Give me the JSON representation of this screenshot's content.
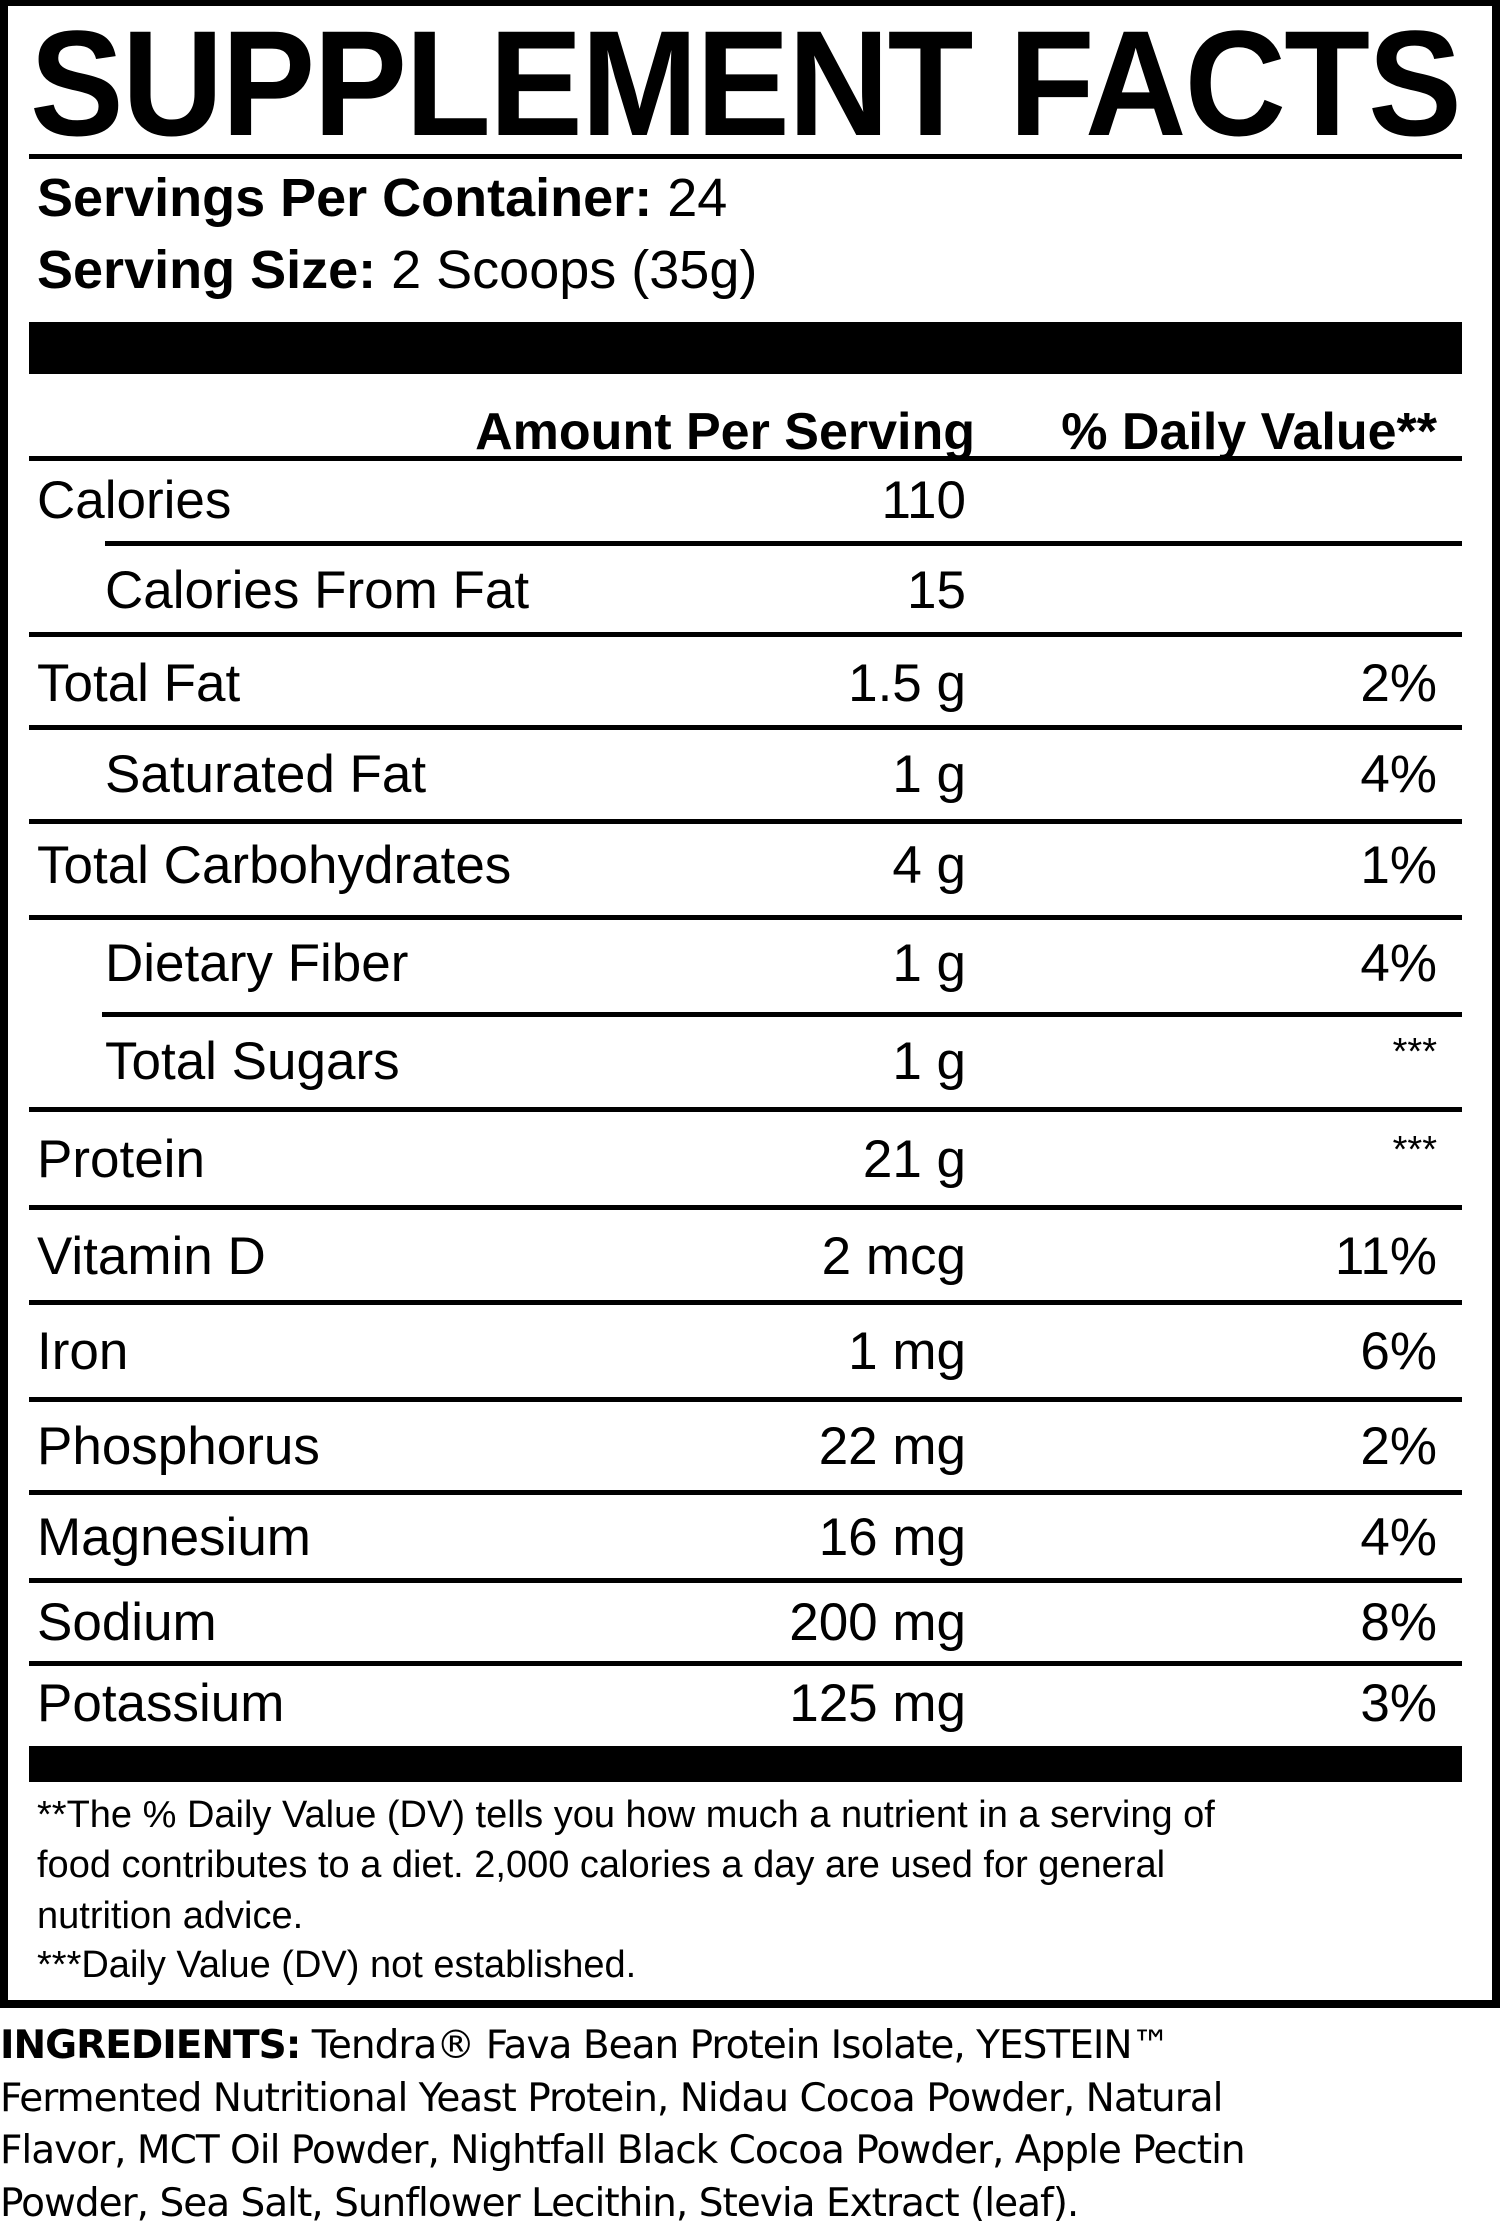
{
  "label": {
    "title": "SUPPLEMENT FACTS",
    "servings_per_container_label": "Servings Per Container:",
    "servings_per_container_value": "24",
    "serving_size_label": "Serving Size:",
    "serving_size_value": "2 Scoops (35g)",
    "col_amount": "Amount Per Serving",
    "col_dv": "% Daily Value**",
    "rows": [
      {
        "name": "Calories",
        "amount": "110",
        "dv": ""
      },
      {
        "name": "Calories From Fat",
        "amount": "15",
        "dv": ""
      },
      {
        "name": "Total Fat",
        "amount": "1.5 g",
        "dv": "2%"
      },
      {
        "name": "Saturated Fat",
        "amount": "1 g",
        "dv": "4%"
      },
      {
        "name": "Total Carbohydrates",
        "amount": "4 g",
        "dv": "1%"
      },
      {
        "name": "Dietary Fiber",
        "amount": "1 g",
        "dv": "4%"
      },
      {
        "name": "Total Sugars",
        "amount": "1 g",
        "dv": "***"
      },
      {
        "name": "Protein",
        "amount": "21 g",
        "dv": "***"
      },
      {
        "name": "Vitamin D",
        "amount": "2 mcg",
        "dv": "11%"
      },
      {
        "name": "Iron",
        "amount": "1 mg",
        "dv": "6%"
      },
      {
        "name": "Phosphorus",
        "amount": "22 mg",
        "dv": "2%"
      },
      {
        "name": "Magnesium",
        "amount": "16 mg",
        "dv": "4%"
      },
      {
        "name": "Sodium",
        "amount": "200 mg",
        "dv": "8%"
      },
      {
        "name": "Potassium",
        "amount": "125 mg",
        "dv": "3%"
      }
    ],
    "footnote_lines": [
      "**The % Daily Value (DV) tells you how much a nutrient in a serving of",
      "food contributes to a diet. 2,000 calories a day are used for general",
      "nutrition advice.",
      "***Daily Value (DV) not established."
    ]
  },
  "ingredients": {
    "label": "INGREDIENTS:",
    "lines": [
      " Tendra® Fava Bean Protein Isolate, YESTEIN™",
      "Fermented Nutritional Yeast Protein, Nidau Cocoa Powder, Natural",
      "Flavor, MCT Oil Powder, Nightfall Black Cocoa Powder, Apple Pectin",
      "Powder, Sea Salt, Sunflower Lecithin, Stevia Extract (leaf)."
    ]
  }
}
